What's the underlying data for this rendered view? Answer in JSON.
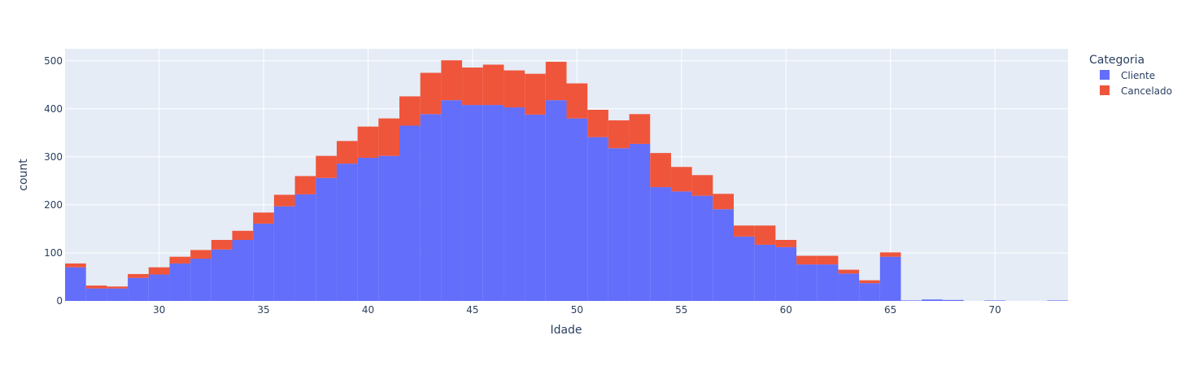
{
  "chart_data": {
    "type": "bar",
    "stacked": true,
    "x_bin_start": 25.5,
    "x_bin_width": 1,
    "x_range": [
      25.5,
      73.5
    ],
    "y_range": [
      0,
      525
    ],
    "x_ticks": [
      30,
      35,
      40,
      45,
      50,
      55,
      60,
      65,
      70
    ],
    "y_ticks": [
      0,
      100,
      200,
      300,
      400,
      500
    ],
    "xlabel": "Idade",
    "ylabel": "count",
    "legend": {
      "title": "Categoria",
      "placement": "top-right"
    },
    "grid": true,
    "series": [
      {
        "name": "Cliente",
        "color": "#636efa",
        "values": [
          70,
          26,
          26,
          48,
          55,
          78,
          88,
          107,
          127,
          161,
          197,
          222,
          256,
          286,
          298,
          302,
          365,
          389,
          418,
          408,
          408,
          403,
          388,
          418,
          380,
          341,
          318,
          327,
          237,
          228,
          219,
          191,
          134,
          117,
          112,
          76,
          76,
          57,
          37,
          92,
          1,
          3,
          2,
          0,
          1,
          0,
          0,
          1
        ]
      },
      {
        "name": "Cancelado",
        "color": "#ef553b",
        "values": [
          8,
          6,
          4,
          8,
          15,
          14,
          18,
          20,
          19,
          23,
          24,
          38,
          46,
          47,
          65,
          78,
          61,
          86,
          83,
          78,
          84,
          77,
          85,
          80,
          73,
          57,
          58,
          62,
          71,
          51,
          43,
          32,
          23,
          40,
          15,
          18,
          18,
          8,
          6,
          9,
          0,
          0,
          0,
          0,
          0,
          0,
          0,
          0
        ]
      }
    ]
  }
}
